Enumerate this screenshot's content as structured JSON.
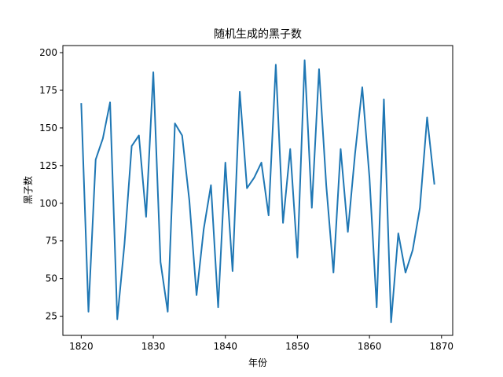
{
  "chart_data": {
    "type": "line",
    "title": "随机生成的黑子数",
    "xlabel": "年份",
    "ylabel": "黑子数",
    "xlim": [
      1817.45,
      1871.55
    ],
    "ylim": [
      12.3,
      204.7
    ],
    "xticks": [
      1820,
      1830,
      1840,
      1850,
      1860,
      1870
    ],
    "yticks": [
      25,
      50,
      75,
      100,
      125,
      150,
      175,
      200
    ],
    "grid": false,
    "line_color": "#1f77b4",
    "series": [
      {
        "x": [
          1820,
          1821,
          1822,
          1823,
          1824,
          1825,
          1826,
          1827,
          1828,
          1829,
          1830,
          1831,
          1832,
          1833,
          1834,
          1835,
          1836,
          1837,
          1838,
          1839,
          1840,
          1841,
          1842,
          1843,
          1844,
          1845,
          1846,
          1847,
          1848,
          1849,
          1850,
          1851,
          1852,
          1853,
          1854,
          1855,
          1856,
          1857,
          1858,
          1859,
          1860,
          1861,
          1862,
          1863,
          1864,
          1865,
          1866,
          1867,
          1868,
          1869
        ],
        "values": [
          166,
          28,
          129,
          143,
          167,
          23,
          73,
          138,
          145,
          91,
          187,
          61,
          28,
          153,
          145,
          102,
          39,
          83,
          112,
          31,
          127,
          55,
          174,
          110,
          117,
          127,
          92,
          192,
          87,
          136,
          64,
          195,
          97,
          189,
          112,
          54,
          136,
          81,
          133,
          177,
          117,
          31,
          169,
          21,
          80,
          54,
          69,
          97,
          157,
          113
        ]
      }
    ]
  }
}
